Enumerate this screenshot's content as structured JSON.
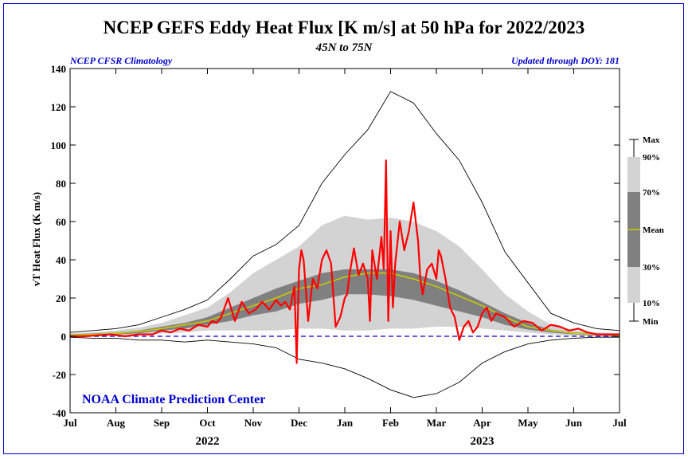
{
  "title": "NCEP GEFS Eddy Heat Flux [K m/s] at 50 hPa for 2022/2023",
  "subtitle": "45N to 75N",
  "left_note": "NCEP CFSR Climatology",
  "right_note": "Updated through DOY: 181",
  "watermark": "NOAA Climate Prediction Center",
  "colors": {
    "observed": "#ff0000",
    "mean": "#cccc00",
    "band_10_90": "#d3d3d3",
    "band_30_70": "#808080",
    "minmax": "#000000",
    "zero_line": "#0000cc",
    "note_text": "#0000cc"
  },
  "chart_data": {
    "type": "area",
    "title": "NCEP GEFS Eddy Heat Flux [K m/s] at 50 hPa for 2022/2023",
    "subtitle": "45N to 75N",
    "ylabel": "vT Heat Flux (K m/s)",
    "xlabel": "",
    "ylim": [
      -40,
      140
    ],
    "yticks": [
      -40,
      -20,
      0,
      20,
      40,
      60,
      80,
      100,
      120,
      140
    ],
    "month_ticks": [
      "Jul",
      "Aug",
      "Sep",
      "Oct",
      "Nov",
      "Dec",
      "Jan",
      "Feb",
      "Mar",
      "Apr",
      "May",
      "Jun",
      "Jul"
    ],
    "year_labels": [
      "2022",
      "2023"
    ],
    "grid": false,
    "x_unit": "months since 1 Jul 2022",
    "x": [
      0,
      0.5,
      1,
      1.5,
      2,
      2.5,
      3,
      3.5,
      4,
      4.5,
      5,
      5.5,
      6,
      6.5,
      7,
      7.5,
      8,
      8.5,
      9,
      9.5,
      10,
      10.5,
      11,
      11.5,
      12
    ],
    "series": [
      {
        "name": "Max",
        "values": [
          2,
          3,
          4,
          6,
          10,
          14,
          19,
          30,
          42,
          48,
          58,
          80,
          95,
          108,
          128,
          122,
          106,
          92,
          70,
          44,
          28,
          12,
          7,
          4,
          3
        ]
      },
      {
        "name": "90%",
        "values": [
          1.5,
          2,
          3,
          4.5,
          7,
          11,
          15,
          23,
          33,
          40,
          47,
          58,
          63,
          61,
          62,
          60,
          55,
          47,
          35,
          22,
          13,
          6,
          3,
          2,
          1.5
        ]
      },
      {
        "name": "70%",
        "values": [
          1,
          1.5,
          2,
          3,
          5,
          7,
          10,
          15,
          20,
          25,
          29,
          33,
          35,
          35,
          35,
          33,
          29,
          24,
          18,
          12,
          7,
          3.5,
          2,
          1.5,
          1
        ]
      },
      {
        "name": "Mean",
        "values": [
          0.5,
          1,
          1.5,
          2.5,
          4,
          6,
          8,
          12,
          16,
          20,
          25,
          27,
          31,
          33,
          33,
          30,
          26,
          21,
          16,
          10,
          5,
          3,
          1.5,
          1,
          0.5
        ]
      },
      {
        "name": "30%",
        "values": [
          0,
          0.5,
          1,
          1.5,
          3,
          4,
          6,
          8,
          11,
          13,
          17,
          19,
          22,
          22,
          21,
          19,
          16,
          13,
          10,
          6,
          3.5,
          2,
          1,
          0.5,
          0
        ]
      },
      {
        "name": "10%",
        "values": [
          -0.5,
          0,
          0.3,
          0.8,
          1.5,
          2,
          3,
          3,
          3,
          3,
          4,
          4,
          3,
          3,
          4,
          4,
          5,
          5,
          4,
          3,
          2,
          1,
          0.3,
          0,
          -0.5
        ]
      },
      {
        "name": "Min",
        "values": [
          -0.5,
          -1,
          -1,
          -2,
          -2,
          -3,
          -2,
          -3,
          -4,
          -6,
          -12,
          -14,
          -17,
          -22,
          -28,
          -32,
          -30,
          -24,
          -14,
          -8,
          -4,
          -2,
          -1,
          -0.5,
          -0.5
        ]
      }
    ],
    "observed": {
      "name": "2022/2023",
      "x": [
        0,
        0.3,
        0.6,
        0.9,
        1.2,
        1.5,
        1.8,
        2.0,
        2.2,
        2.4,
        2.6,
        2.8,
        3.0,
        3.1,
        3.2,
        3.3,
        3.45,
        3.6,
        3.75,
        3.9,
        4.05,
        4.2,
        4.35,
        4.5,
        4.6,
        4.7,
        4.8,
        4.9,
        4.95,
        5.0,
        5.05,
        5.1,
        5.2,
        5.3,
        5.4,
        5.5,
        5.6,
        5.7,
        5.8,
        5.9,
        6.0,
        6.05,
        6.1,
        6.2,
        6.3,
        6.4,
        6.5,
        6.55,
        6.6,
        6.7,
        6.8,
        6.85,
        6.9,
        6.95,
        7.0,
        7.05,
        7.1,
        7.2,
        7.3,
        7.4,
        7.5,
        7.6,
        7.65,
        7.7,
        7.8,
        7.9,
        8.0,
        8.05,
        8.1,
        8.2,
        8.3,
        8.4,
        8.5,
        8.6,
        8.7,
        8.8,
        8.9,
        9.0,
        9.1,
        9.2,
        9.3,
        9.5,
        9.7,
        9.9,
        10.1,
        10.3,
        10.5,
        10.7,
        10.9,
        11.1,
        11.3,
        11.5,
        11.7,
        12.0
      ],
      "values": [
        0,
        0,
        0.5,
        1,
        0,
        1,
        1,
        3,
        2,
        4,
        3,
        6,
        5,
        8,
        7,
        10,
        20,
        8,
        18,
        12,
        14,
        18,
        14,
        19,
        16,
        18,
        14,
        26,
        -14,
        35,
        45,
        40,
        8,
        30,
        25,
        40,
        45,
        38,
        5,
        10,
        20,
        22,
        32,
        46,
        32,
        38,
        30,
        8,
        45,
        30,
        52,
        35,
        92,
        8,
        55,
        15,
        38,
        60,
        45,
        55,
        70,
        50,
        30,
        22,
        35,
        38,
        30,
        45,
        42,
        30,
        15,
        10,
        -2,
        5,
        8,
        2,
        5,
        12,
        15,
        8,
        12,
        10,
        5,
        8,
        7,
        3,
        6,
        5,
        3,
        4,
        2,
        1,
        1,
        1
      ]
    }
  }
}
